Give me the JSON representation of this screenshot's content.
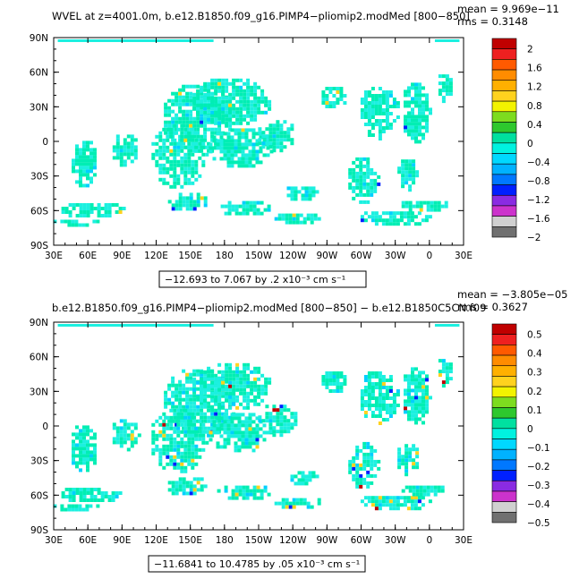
{
  "panels": [
    {
      "title": "WVEL at z=4001.0m, b.e12.B1850.f09_g16.PIMP4−pliomip2.modMed [800−850]",
      "mean": "mean = 9.969e−11",
      "rms": "rms = 0.3148",
      "range_label": "−12.693 to 7.067 by .2 x10⁻³ cm s⁻¹"
    },
    {
      "title": "b.e12.B1850.f09_g16.PIMP4−pliomip2.modMed [800−850] − b.e12.B1850C5CN.f09",
      "mean": "mean = −3.805e−05",
      "rms": "rms = 0.3627",
      "range_label": "−11.6841 to 10.4785 by .05 x10⁻³ cm s⁻¹"
    }
  ],
  "chart_data": [
    {
      "type": "heatmap",
      "title": "WVEL at z=4001.0m, b.e12.B1850.f09_g16.PIMP4−pliomip2.modMed [800−850]",
      "x_tick_labels": [
        "30E",
        "60E",
        "90E",
        "120E",
        "150E",
        "180",
        "150W",
        "120W",
        "90W",
        "60W",
        "30W",
        "0",
        "30E"
      ],
      "y_tick_labels": [
        "90N",
        "60N",
        "30N",
        "0",
        "30S",
        "60S",
        "90S"
      ],
      "colorbar_labels": [
        "2",
        "1.6",
        "1.2",
        "0.8",
        "0.4",
        "0",
        "−0.4",
        "−0.8",
        "−1.2",
        "−1.6",
        "−2"
      ],
      "colorbar_colors": [
        "#c00000",
        "#ee2020",
        "#ff5a00",
        "#ff8c00",
        "#ffb000",
        "#ffd21e",
        "#f3f300",
        "#7ddc1f",
        "#2ec82e",
        "#00e0a0",
        "#00f2e0",
        "#00d8ff",
        "#00b2ff",
        "#0078ff",
        "#0020ff",
        "#8a2be2",
        "#cc33cc",
        "#d0d0d0",
        "#707070"
      ],
      "stats": {
        "mean": 9.969e-11,
        "rms": 0.3148
      },
      "contour_range": {
        "min": -12.693,
        "max": 7.067,
        "interval": 0.2,
        "units": "x10⁻³ cm s⁻¹"
      }
    },
    {
      "type": "heatmap",
      "title": "b.e12.B1850.f09_g16.PIMP4−pliomip2.modMed [800−850] − b.e12.B1850C5CN.f09",
      "x_tick_labels": [
        "30E",
        "60E",
        "90E",
        "120E",
        "150E",
        "180",
        "150W",
        "120W",
        "90W",
        "60W",
        "30W",
        "0",
        "30E"
      ],
      "y_tick_labels": [
        "90N",
        "60N",
        "30N",
        "0",
        "30S",
        "60S",
        "90S"
      ],
      "colorbar_labels": [
        "0.5",
        "0.4",
        "0.3",
        "0.2",
        "0.1",
        "0",
        "−0.1",
        "−0.2",
        "−0.3",
        "−0.4",
        "−0.5"
      ],
      "colorbar_colors": [
        "#c00000",
        "#ee2020",
        "#ff5a00",
        "#ff8c00",
        "#ffb000",
        "#ffd21e",
        "#f3f300",
        "#7ddc1f",
        "#2ec82e",
        "#00e0a0",
        "#00f2e0",
        "#00d8ff",
        "#00b2ff",
        "#0078ff",
        "#0020ff",
        "#8a2be2",
        "#cc33cc",
        "#d0d0d0",
        "#707070"
      ],
      "stats": {
        "mean": -3.805e-05,
        "rms": 0.3627
      },
      "contour_range": {
        "min": -11.6841,
        "max": 10.4785,
        "interval": 0.05,
        "units": "x10⁻³ cm s⁻¹"
      }
    }
  ],
  "colors": {
    "ocean_main": "#00eeb4",
    "ocean_alt": "#1cf0e0",
    "speckle": "#00d0ff",
    "positive": "#ffd21e",
    "strong_positive": "#c00000",
    "negative": "#0020ff"
  }
}
